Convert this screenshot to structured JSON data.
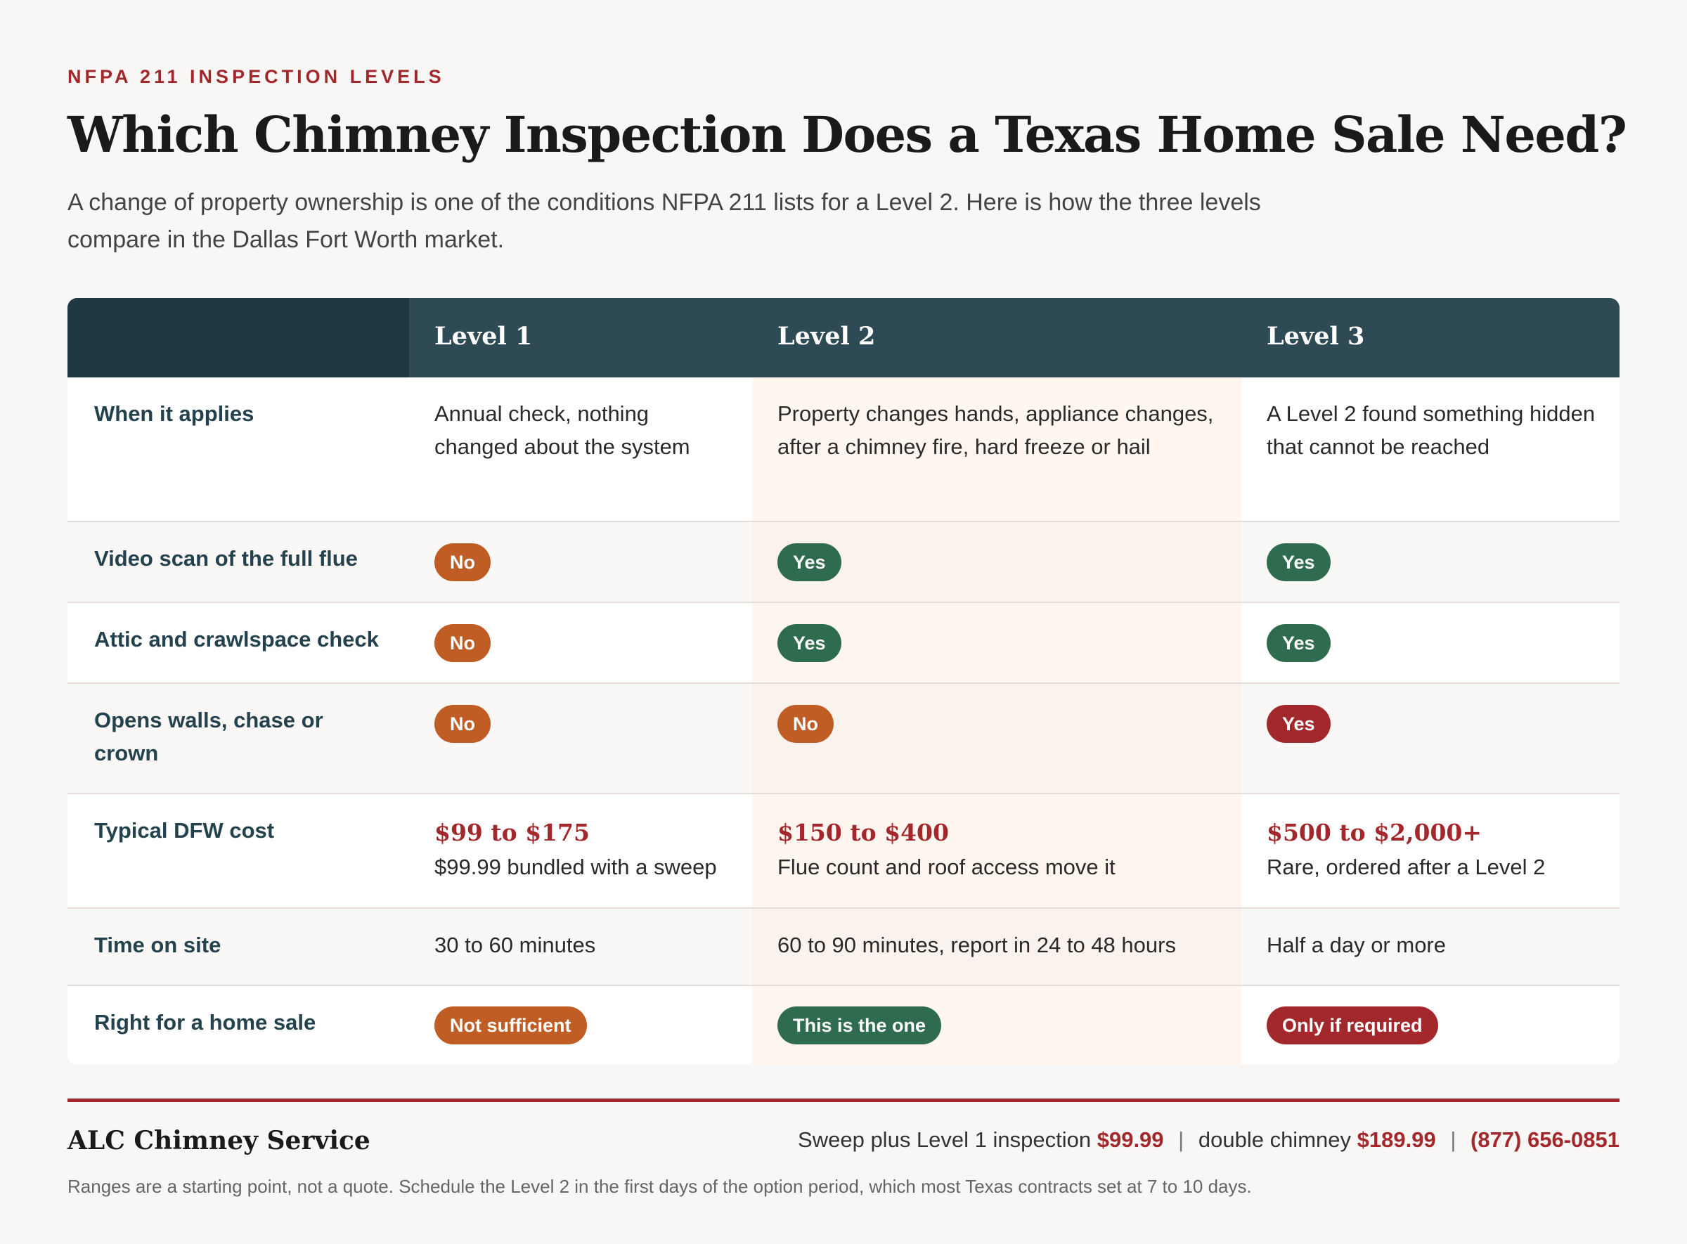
{
  "eyebrow": "NFPA 211 INSPECTION LEVELS",
  "title": "Which Chimney Inspection Does a Texas Home Sale Need?",
  "subtitle": "A change of property ownership is one of the conditions NFPA 211 lists for a Level 2. Here is how the three levels compare in the Dallas Fort Worth market.",
  "table": {
    "headers": [
      "Level 1",
      "Level 2",
      "Level 3"
    ],
    "rows": {
      "when": {
        "label": "When it applies",
        "l1": "Annual check, nothing changed about the system",
        "l2": "Property changes hands, appliance changes, after a chimney fire, hard freeze or hail",
        "l3": "A Level 2 found something hidden that cannot be reached"
      },
      "video": {
        "label": "Video scan of the full flue",
        "l1": "No",
        "l2": "Yes",
        "l3": "Yes"
      },
      "attic": {
        "label": "Attic and crawlspace check",
        "l1": "No",
        "l2": "Yes",
        "l3": "Yes"
      },
      "opens": {
        "label": "Opens walls, chase or crown",
        "l1": "No",
        "l2": "No",
        "l3": "Yes"
      },
      "cost": {
        "label": "Typical DFW cost",
        "l1_price": "$99 to $175",
        "l1_note": "$99.99 bundled with a sweep",
        "l2_price": "$150 to $400",
        "l2_note": "Flue count and roof access move it",
        "l3_price": "$500 to $2,000+",
        "l3_note": "Rare, ordered after a Level 2"
      },
      "time": {
        "label": "Time on site",
        "l1": "30 to 60 minutes",
        "l2": "60 to 90 minutes, report in 24 to 48 hours",
        "l3": "Half a day or more"
      },
      "sale": {
        "label": "Right for a home sale",
        "l1": "Not sufficient",
        "l2": "This is the one",
        "l3": "Only if required"
      }
    }
  },
  "footer": {
    "brand": "ALC Chimney Service",
    "promo_text1": "Sweep plus Level 1 inspection",
    "promo_price1": "$99.99",
    "promo_sep": "|",
    "promo_text2": "double chimney",
    "promo_price2": "$189.99",
    "phone": "(877) 656-0851",
    "note": "Ranges are a starting point, not a quote. Schedule the Level 2 in the first days of the option period, which most Texas contracts set at 7 to 10 days."
  },
  "colors": {
    "accent_red": "#a3282c",
    "header_teal": "#2d4a55",
    "badge_no": "#bf5d25",
    "badge_yes": "#2f6b4e",
    "highlight_column": "#fff6f0"
  }
}
